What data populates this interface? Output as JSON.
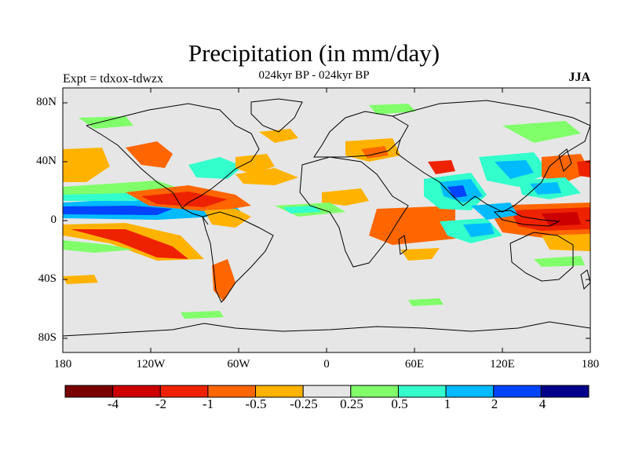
{
  "title": "Precipitation (in mm/day)",
  "subtitle": "024kyr BP - 024kyr BP",
  "left_label": "Expt = tdxox-tdwzx",
  "right_label": "JJA",
  "lat_ticks": [
    "80N",
    "40N",
    "0",
    "40S",
    "80S"
  ],
  "lon_ticks": [
    "180",
    "120W",
    "60W",
    "0",
    "60E",
    "120E",
    "180"
  ],
  "colorbar": {
    "colors": [
      "#7a0000",
      "#cc0000",
      "#ee2200",
      "#ff6600",
      "#ffb300",
      "#e6e6e6",
      "#80ff6a",
      "#33ffcc",
      "#00bbff",
      "#0044ff",
      "#00008a"
    ],
    "labels": [
      "-4",
      "-2",
      "-1",
      "-0.5",
      "-0.25",
      "0.25",
      "0.5",
      "1",
      "2",
      "4"
    ]
  },
  "colors": {
    "ocean_background": "#e6e6e6",
    "coastline": "#000000"
  }
}
